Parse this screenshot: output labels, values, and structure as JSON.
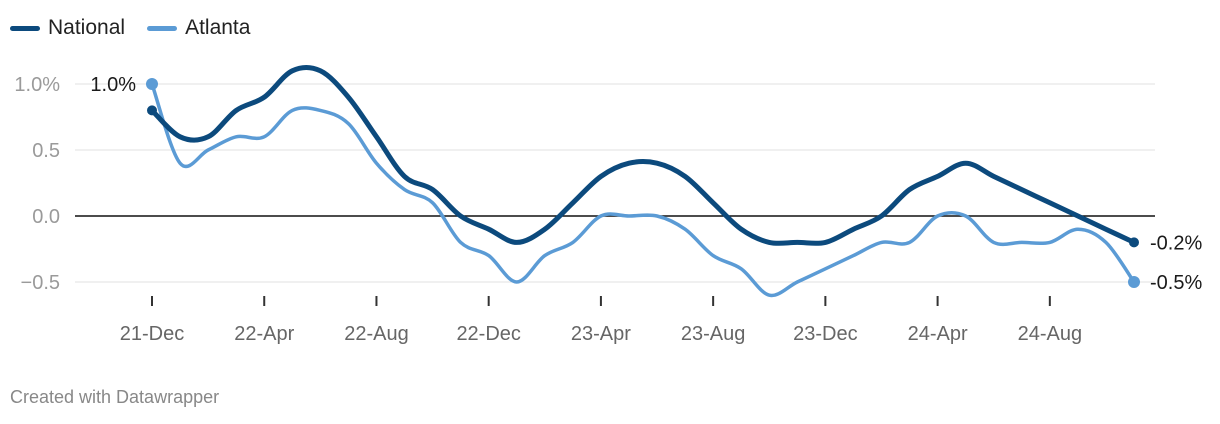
{
  "chart_data": {
    "type": "line",
    "title": "",
    "xlabel": "",
    "ylabel": "",
    "ylim": [
      -0.6,
      1.1
    ],
    "y_ticks": [
      {
        "value": 1.0,
        "label": "1.0%"
      },
      {
        "value": 0.5,
        "label": "0.5"
      },
      {
        "value": 0.0,
        "label": "0.0"
      },
      {
        "value": -0.5,
        "label": "−0.5"
      }
    ],
    "x_ticks": [
      {
        "x": 0,
        "label": "21-Dec"
      },
      {
        "x": 4,
        "label": "22-Apr"
      },
      {
        "x": 8,
        "label": "22-Aug"
      },
      {
        "x": 12,
        "label": "22-Dec"
      },
      {
        "x": 16,
        "label": "23-Apr"
      },
      {
        "x": 20,
        "label": "23-Aug"
      },
      {
        "x": 24,
        "label": "23-Dec"
      },
      {
        "x": 28,
        "label": "24-Apr"
      },
      {
        "x": 32,
        "label": "24-Aug"
      }
    ],
    "zero_line": true,
    "grid": true,
    "legend_position": "top-left",
    "series": [
      {
        "name": "National",
        "color": "#0c4a7d",
        "x": [
          0,
          1,
          2,
          3,
          4,
          5,
          6,
          7,
          8,
          9,
          10,
          11,
          12,
          13,
          14,
          15,
          16,
          17,
          18,
          19,
          20,
          21,
          22,
          23,
          24,
          25,
          26,
          27,
          28,
          29,
          30,
          31,
          32,
          33,
          34,
          35
        ],
        "values": [
          0.8,
          0.6,
          0.6,
          0.8,
          0.9,
          1.1,
          1.1,
          0.9,
          0.6,
          0.3,
          0.2,
          0.0,
          -0.1,
          -0.2,
          -0.1,
          0.1,
          0.3,
          0.4,
          0.4,
          0.3,
          0.1,
          -0.1,
          -0.2,
          -0.2,
          -0.2,
          -0.1,
          0.0,
          0.2,
          0.3,
          0.4,
          0.3,
          0.2,
          0.1,
          0.0,
          -0.1,
          -0.2
        ],
        "start_label": "",
        "end_label": "-0.2%"
      },
      {
        "name": "Atlanta",
        "color": "#5b9bd5",
        "x": [
          0,
          1,
          2,
          3,
          4,
          5,
          6,
          7,
          8,
          9,
          10,
          11,
          12,
          13,
          14,
          15,
          16,
          17,
          18,
          19,
          20,
          21,
          22,
          23,
          24,
          25,
          26,
          27,
          28,
          29,
          30,
          31,
          32,
          33,
          34,
          35
        ],
        "values": [
          1.0,
          0.4,
          0.5,
          0.6,
          0.6,
          0.8,
          0.8,
          0.7,
          0.4,
          0.2,
          0.1,
          -0.2,
          -0.3,
          -0.5,
          -0.3,
          -0.2,
          0.0,
          0.0,
          0.0,
          -0.1,
          -0.3,
          -0.4,
          -0.6,
          -0.5,
          -0.4,
          -0.3,
          -0.2,
          -0.2,
          0.0,
          0.0,
          -0.2,
          -0.2,
          -0.2,
          -0.1,
          -0.2,
          -0.5
        ],
        "start_label": "1.0%",
        "end_label": "-0.5%"
      }
    ]
  },
  "footer": "Created with Datawrapper"
}
